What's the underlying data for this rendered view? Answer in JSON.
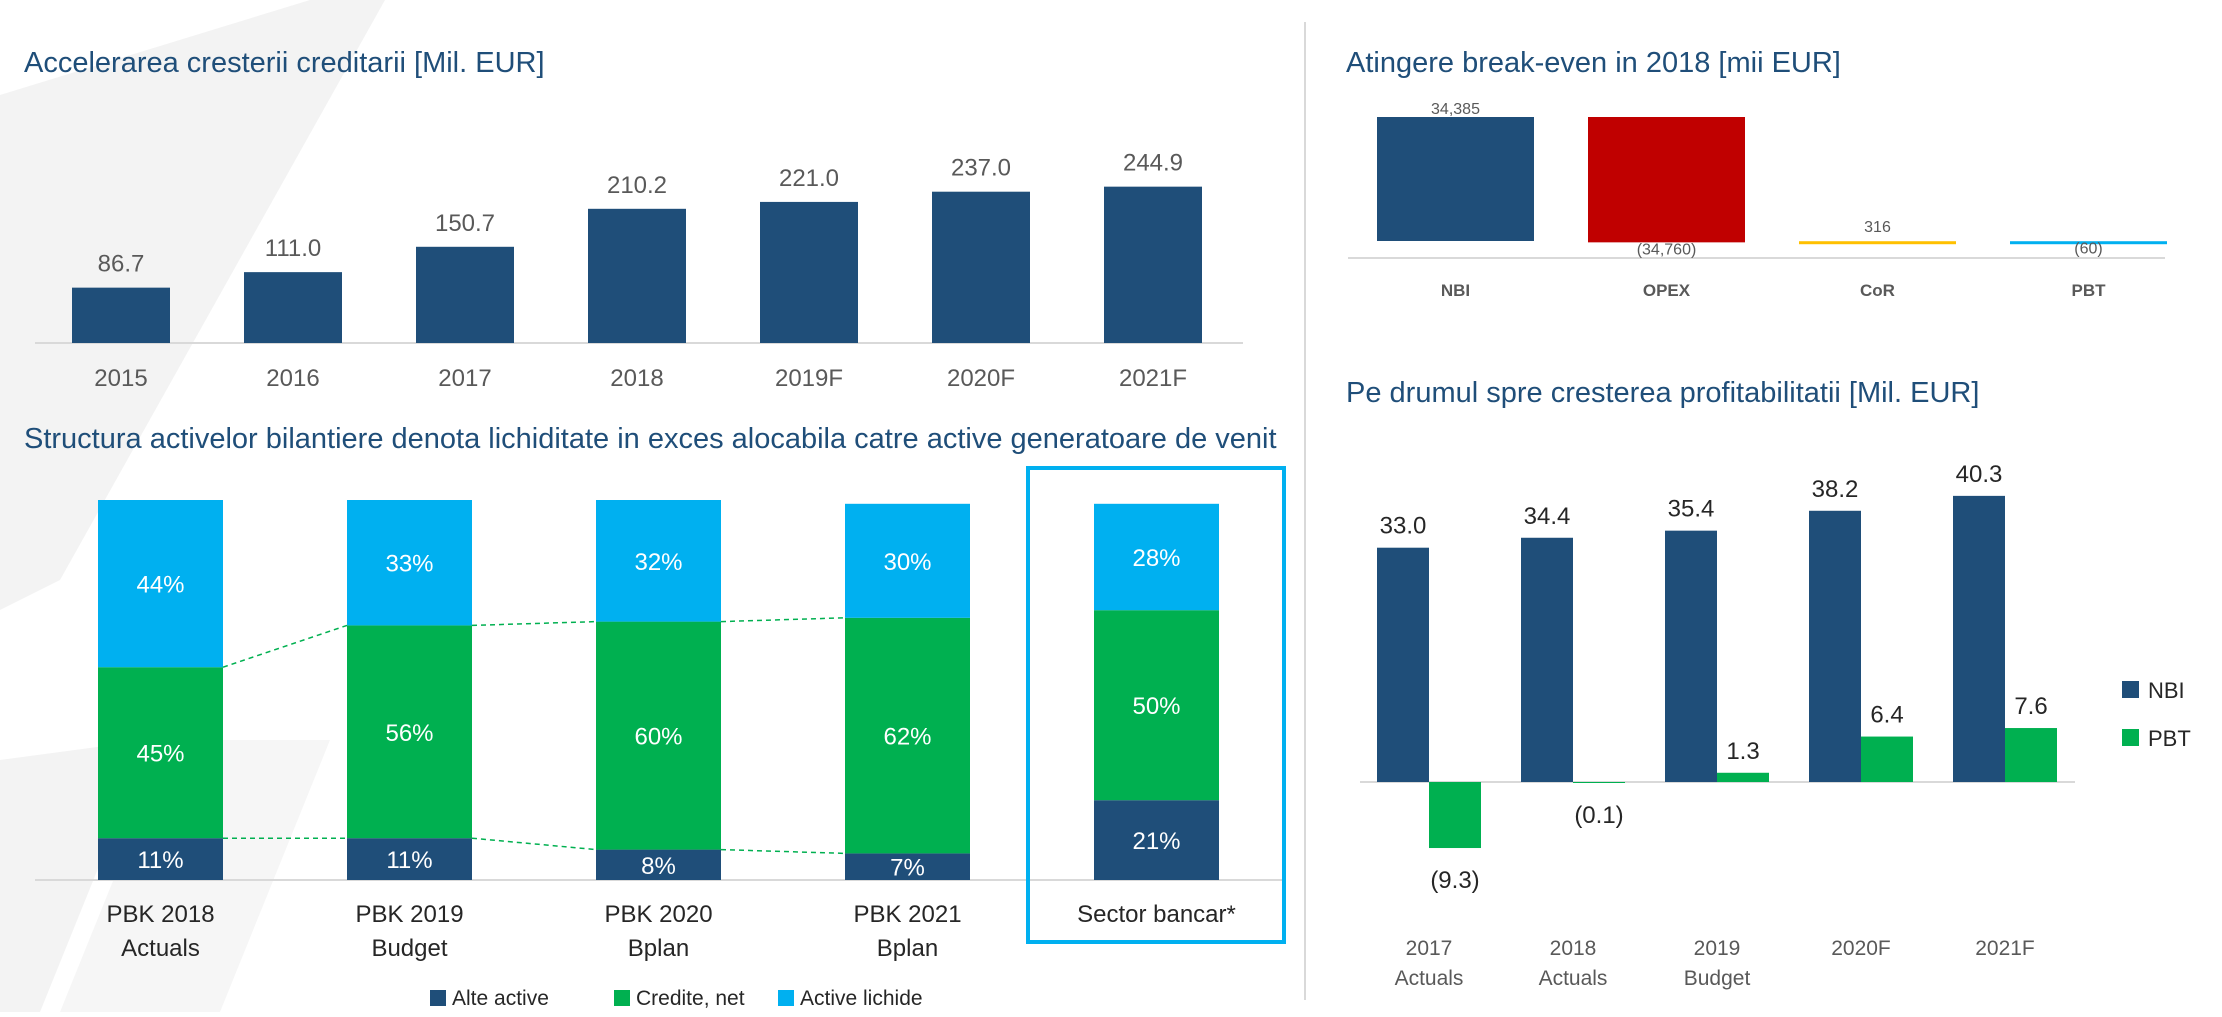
{
  "colors": {
    "navy": "#1f4e79",
    "green": "#00b050",
    "light_blue": "#00b0f0",
    "red": "#c00000",
    "gold": "#ffc000",
    "watermark": "#f2f2f2"
  },
  "chart_data": [
    {
      "id": "credit",
      "type": "bar",
      "title": "Accelerarea cresterii creditarii [Mil. EUR]",
      "categories": [
        "2015",
        "2016",
        "2017",
        "2018",
        "2019F",
        "2020F",
        "2021F"
      ],
      "values": [
        86.7,
        111.0,
        150.7,
        210.2,
        221.0,
        237.0,
        244.9
      ],
      "value_labels": [
        "86.7",
        "111.0",
        "150.7",
        "210.2",
        "221.0",
        "237.0",
        "244.9"
      ],
      "ylim": [
        0,
        270
      ],
      "grid": false,
      "legend": "none"
    },
    {
      "id": "structure",
      "type": "bar",
      "stacked": true,
      "percent": true,
      "title": "Structura activelor bilantiere denota lichiditate in exces alocabila catre active generatoare de venit",
      "categories": [
        [
          "PBK 2018",
          "Actuals"
        ],
        [
          "PBK 2019",
          "Budget"
        ],
        [
          "PBK 2020",
          "Bplan"
        ],
        [
          "PBK 2021",
          "Bplan"
        ],
        [
          "Sector bancar*"
        ]
      ],
      "highlighted_category": "Sector bancar*",
      "series": [
        {
          "name": "Alte active",
          "values": [
            11,
            11,
            8,
            7,
            21
          ],
          "labels": [
            "11%",
            "11%",
            "8%",
            "7%",
            "21%"
          ]
        },
        {
          "name": "Credite, net",
          "values": [
            45,
            56,
            60,
            62,
            50
          ],
          "labels": [
            "45%",
            "56%",
            "60%",
            "62%",
            "50%"
          ]
        },
        {
          "name": "Active lichide",
          "values": [
            44,
            33,
            32,
            30,
            28
          ],
          "labels": [
            "44%",
            "33%",
            "32%",
            "30%",
            "28%"
          ]
        }
      ],
      "legend": "bottom"
    },
    {
      "id": "breakeven",
      "type": "bar",
      "waterfall": true,
      "title": "Atingere break-even in 2018 [mii EUR]",
      "categories": [
        "NBI",
        "OPEX",
        "CoR",
        "PBT"
      ],
      "values": [
        34385,
        -34760,
        316,
        -60
      ],
      "value_labels": [
        "34,385",
        "(34,760)",
        "316",
        "(60)"
      ],
      "legend": "none"
    },
    {
      "id": "profit",
      "type": "bar",
      "title": "Pe drumul spre cresterea profitabilitatii [Mil. EUR]",
      "categories": [
        [
          "2017",
          "Actuals"
        ],
        [
          "2018",
          "Actuals"
        ],
        [
          "2019",
          "Budget"
        ],
        [
          "2020F"
        ],
        [
          "2021F"
        ]
      ],
      "series": [
        {
          "name": "NBI",
          "values": [
            33.0,
            34.4,
            35.4,
            38.2,
            40.3
          ],
          "labels": [
            "33.0",
            "34.4",
            "35.4",
            "38.2",
            "40.3"
          ]
        },
        {
          "name": "PBT",
          "values": [
            -9.3,
            -0.1,
            1.3,
            6.4,
            7.6
          ],
          "labels": [
            "(9.3)",
            "(0.1)",
            "1.3",
            "6.4",
            "7.6"
          ]
        }
      ],
      "ylim": [
        -10,
        42
      ],
      "legend": "right"
    }
  ]
}
